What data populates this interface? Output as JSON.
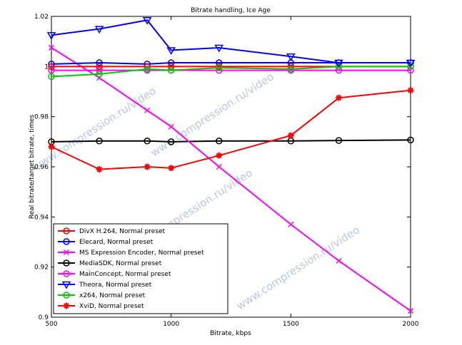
{
  "chart_data": {
    "type": "line",
    "title": "Bitrate handling, Ice Age",
    "xlabel": "Bitrate, kbps",
    "ylabel": "Real bitrate/target bitrate, times",
    "xlim": [
      500,
      2000
    ],
    "ylim": [
      0.9,
      1.02
    ],
    "xticks": [
      "500",
      "1000",
      "1500",
      "2000"
    ],
    "xtick_values": [
      500,
      1000,
      1500,
      2000
    ],
    "yticks": [
      "0.9",
      "0.92",
      "0.94",
      "0.96",
      "0.98",
      "1",
      "1.02"
    ],
    "ytick_values": [
      0.9,
      0.92,
      0.94,
      0.96,
      0.98,
      1.0,
      1.02
    ],
    "grid": false,
    "legend_position": "lower-left",
    "watermark": "www.compression.ru/video",
    "series": [
      {
        "name": "DivX H.264, Normal preset",
        "color": "#ff0000",
        "marker": "circle",
        "x": [
          500,
          700,
          900,
          1000,
          1200,
          1500,
          1700,
          2000
        ],
        "y": [
          1.0,
          1.0,
          1.0,
          1.0,
          1.0,
          1.0,
          1.0,
          1.0
        ]
      },
      {
        "name": "Elecard, Normal preset",
        "color": "#0000ff",
        "marker": "circle",
        "x": [
          500,
          700,
          900,
          1000,
          1200,
          1500,
          1700,
          2000
        ],
        "y": [
          1.001,
          1.0015,
          1.001,
          1.0015,
          1.0015,
          1.0015,
          1.0015,
          1.0015
        ]
      },
      {
        "name": "MS Expression Encoder, Normal preset",
        "color": "#ff00ff",
        "marker": "x",
        "x": [
          500,
          700,
          900,
          1000,
          1200,
          1500,
          1700,
          2000
        ],
        "y": [
          1.0075,
          0.9955,
          0.9825,
          0.976,
          0.96,
          0.937,
          0.9225,
          0.9025
        ]
      },
      {
        "name": "MediaSDK, Normal preset",
        "color": "#000000",
        "marker": "circle",
        "x": [
          500,
          700,
          900,
          1000,
          1200,
          1500,
          1700,
          2000
        ],
        "y": [
          0.97,
          0.9703,
          0.9703,
          0.97,
          0.9703,
          0.9703,
          0.9705,
          0.9707
        ]
      },
      {
        "name": "MainConcept, Normal preset",
        "color": "#ff00ff",
        "marker": "circle",
        "x": [
          500,
          700,
          900,
          1000,
          1200,
          1500,
          1700,
          2000
        ],
        "y": [
          0.9985,
          0.9985,
          0.9985,
          0.9985,
          0.9985,
          0.9985,
          0.9985,
          0.9985
        ]
      },
      {
        "name": "Theora, Normal preset",
        "color": "#0000ff",
        "marker": "triangle-down",
        "x": [
          500,
          700,
          900,
          1000,
          1200,
          1500,
          1700,
          2000
        ],
        "y": [
          1.0125,
          1.015,
          1.0185,
          1.0065,
          1.0075,
          1.004,
          1.0015,
          1.0015
        ]
      },
      {
        "name": "x264, Normal preset",
        "color": "#00cc00",
        "marker": "circle",
        "x": [
          500,
          700,
          900,
          1000,
          1200,
          1500,
          1700,
          2000
        ],
        "y": [
          0.996,
          0.997,
          0.999,
          0.9985,
          0.9995,
          0.999,
          1.0,
          1.0
        ]
      },
      {
        "name": "XviD, Normal preset",
        "color": "#ff0000",
        "marker": "star",
        "x": [
          500,
          700,
          900,
          1000,
          1200,
          1500,
          1700,
          2000
        ],
        "y": [
          0.968,
          0.959,
          0.96,
          0.9595,
          0.9645,
          0.9725,
          0.9875,
          0.9905
        ]
      }
    ]
  }
}
